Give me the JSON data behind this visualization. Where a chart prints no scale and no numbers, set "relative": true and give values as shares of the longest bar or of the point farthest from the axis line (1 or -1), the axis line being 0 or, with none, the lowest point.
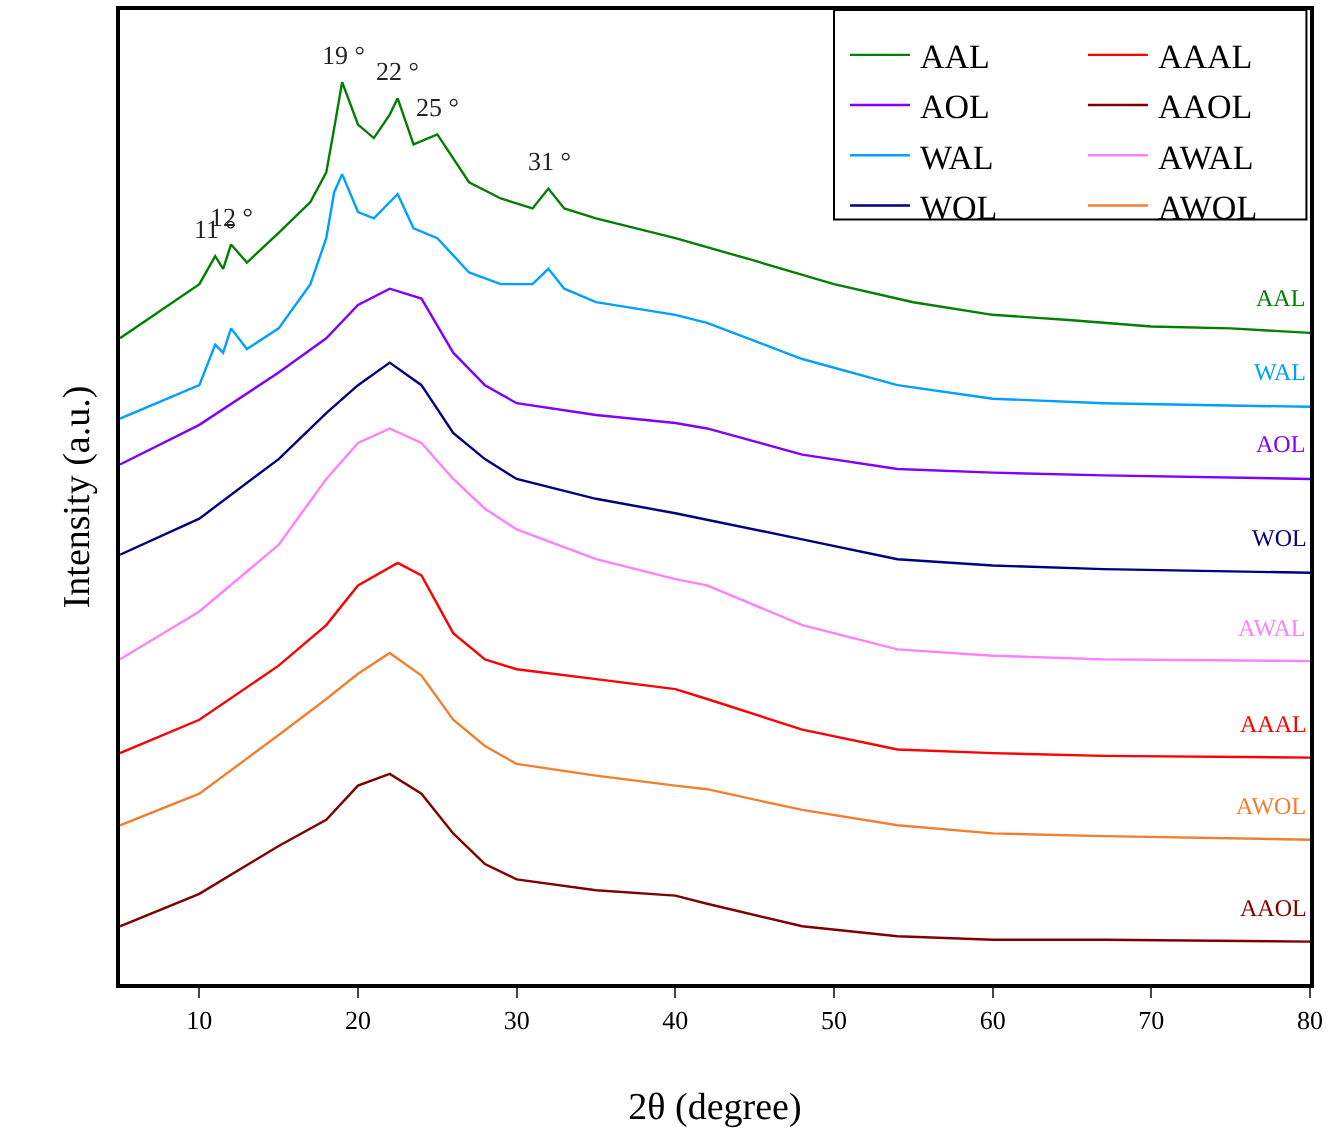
{
  "chart_data": {
    "type": "line",
    "relative": true,
    "xlabel": "2θ (degree)",
    "ylabel": "Intensity (a.u.)",
    "xlim": [
      5,
      80
    ],
    "xticks": [
      10,
      20,
      30,
      40,
      50,
      60,
      70,
      80
    ],
    "grid": false,
    "legend": "top right",
    "marker": "none",
    "line_style": "solid",
    "series": [
      {
        "name": "AAL",
        "color": "#007f00",
        "x": [
          5,
          10,
          11,
          11.5,
          12,
          13,
          15,
          17,
          18,
          18.5,
          19,
          20,
          21,
          22,
          22.5,
          23.5,
          25,
          27,
          29,
          31,
          32,
          33,
          35,
          40,
          45,
          50,
          55,
          60,
          65,
          70,
          75,
          80
        ],
        "values": [
          0.716,
          0.776,
          0.807,
          0.793,
          0.82,
          0.8,
          0.833,
          0.867,
          0.9,
          0.949,
          1,
          0.953,
          0.938,
          0.964,
          0.982,
          0.931,
          0.942,
          0.889,
          0.871,
          0.86,
          0.882,
          0.86,
          0.849,
          0.827,
          0.802,
          0.776,
          0.756,
          0.742,
          0.736,
          0.729,
          0.727,
          0.722
        ]
      },
      {
        "name": "AAAL",
        "color": "#ff0000",
        "x": [
          5,
          10,
          15,
          18,
          20,
          22.5,
          24,
          26,
          28,
          30,
          35,
          40,
          42,
          48,
          54,
          60,
          67,
          80
        ],
        "values": [
          0.256,
          0.293,
          0.353,
          0.398,
          0.442,
          0.467,
          0.453,
          0.389,
          0.36,
          0.349,
          0.338,
          0.327,
          0.316,
          0.282,
          0.26,
          0.256,
          0.253,
          0.251
        ]
      },
      {
        "name": "AOL",
        "color": "#8000ff",
        "x": [
          5,
          10,
          15,
          18,
          20,
          22,
          24,
          26,
          28,
          30,
          35,
          40,
          42,
          48,
          54,
          60,
          67,
          80
        ],
        "values": [
          0.576,
          0.62,
          0.678,
          0.716,
          0.753,
          0.771,
          0.76,
          0.7,
          0.664,
          0.644,
          0.631,
          0.622,
          0.616,
          0.587,
          0.571,
          0.567,
          0.564,
          0.56
        ]
      },
      {
        "name": "AAOL",
        "color": "#800000",
        "x": [
          5,
          10,
          15,
          18,
          20,
          22,
          24,
          26,
          28,
          30,
          35,
          40,
          42,
          48,
          54,
          60,
          67,
          80
        ],
        "values": [
          0.064,
          0.1,
          0.153,
          0.182,
          0.22,
          0.233,
          0.211,
          0.167,
          0.133,
          0.116,
          0.104,
          0.098,
          0.089,
          0.064,
          0.053,
          0.049,
          0.049,
          0.047
        ]
      },
      {
        "name": "WAL",
        "color": "#00a0ff",
        "x": [
          5,
          10,
          11,
          11.5,
          12,
          13,
          15,
          17,
          18,
          18.5,
          19,
          20,
          21,
          22.5,
          23.5,
          25,
          27,
          29,
          31,
          32,
          33,
          35,
          40,
          42,
          48,
          54,
          60,
          67,
          73,
          80
        ],
        "values": [
          0.627,
          0.664,
          0.709,
          0.7,
          0.727,
          0.704,
          0.727,
          0.776,
          0.827,
          0.878,
          0.898,
          0.856,
          0.849,
          0.876,
          0.838,
          0.827,
          0.789,
          0.776,
          0.776,
          0.793,
          0.771,
          0.756,
          0.742,
          0.733,
          0.693,
          0.664,
          0.649,
          0.644,
          0.642,
          0.64
        ]
      },
      {
        "name": "AWAL",
        "color": "#ff80ff",
        "x": [
          5,
          10,
          15,
          18,
          20,
          22,
          24,
          26,
          28,
          30,
          35,
          40,
          42,
          48,
          54,
          60,
          67,
          80
        ],
        "values": [
          0.36,
          0.413,
          0.487,
          0.56,
          0.6,
          0.616,
          0.6,
          0.56,
          0.527,
          0.504,
          0.471,
          0.449,
          0.442,
          0.398,
          0.371,
          0.364,
          0.36,
          0.358
        ]
      },
      {
        "name": "WOL",
        "color": "#000080",
        "x": [
          5,
          10,
          15,
          18,
          20,
          22,
          24,
          26,
          28,
          30,
          35,
          40,
          48,
          54,
          60,
          67,
          80
        ],
        "values": [
          0.476,
          0.516,
          0.582,
          0.633,
          0.664,
          0.689,
          0.664,
          0.611,
          0.582,
          0.56,
          0.538,
          0.522,
          0.493,
          0.471,
          0.464,
          0.46,
          0.456
        ]
      },
      {
        "name": "AWOL",
        "color": "#f08030",
        "x": [
          5,
          10,
          15,
          18,
          20,
          22,
          24,
          26,
          28,
          30,
          35,
          40,
          42,
          48,
          54,
          60,
          67,
          80
        ],
        "values": [
          0.176,
          0.211,
          0.276,
          0.316,
          0.344,
          0.367,
          0.342,
          0.293,
          0.264,
          0.244,
          0.231,
          0.22,
          0.216,
          0.193,
          0.176,
          0.167,
          0.164,
          0.16
        ]
      }
    ],
    "annotations": [
      {
        "text": "11 °",
        "x": 11,
        "y": 0.807
      },
      {
        "text": "12 °",
        "x": 12,
        "y": 0.82
      },
      {
        "text": "19 °",
        "x": 19,
        "y": 1
      },
      {
        "text": "22 °",
        "x": 22.5,
        "y": 0.982
      },
      {
        "text": "25 °",
        "x": 25,
        "y": 0.942
      },
      {
        "text": "31 °",
        "x": 32,
        "y": 0.882
      }
    ]
  }
}
